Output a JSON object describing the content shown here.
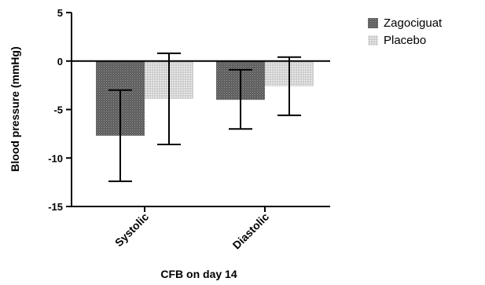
{
  "chart_data": {
    "type": "bar",
    "categories": [
      "Systolic",
      "Diastolic"
    ],
    "series": [
      {
        "name": "Zagociguat",
        "values": [
          -7.7,
          -4.0
        ],
        "err_low": [
          -12.4,
          -7.0
        ],
        "err_high": [
          -3.0,
          -0.9
        ],
        "color": "#6e6e6e"
      },
      {
        "name": "Placebo",
        "values": [
          -3.9,
          -2.6
        ],
        "err_low": [
          -8.6,
          -5.6
        ],
        "err_high": [
          0.8,
          0.4
        ],
        "color": "#cfcfcf"
      }
    ],
    "title": "",
    "xlabel": "CFB on day 14",
    "ylabel": "Blood pressure (mmHg)",
    "ylim": [
      -15,
      5
    ],
    "yticks": [
      5,
      0,
      -5,
      -10,
      -15
    ],
    "legend_position": "top-right",
    "grid": false
  }
}
